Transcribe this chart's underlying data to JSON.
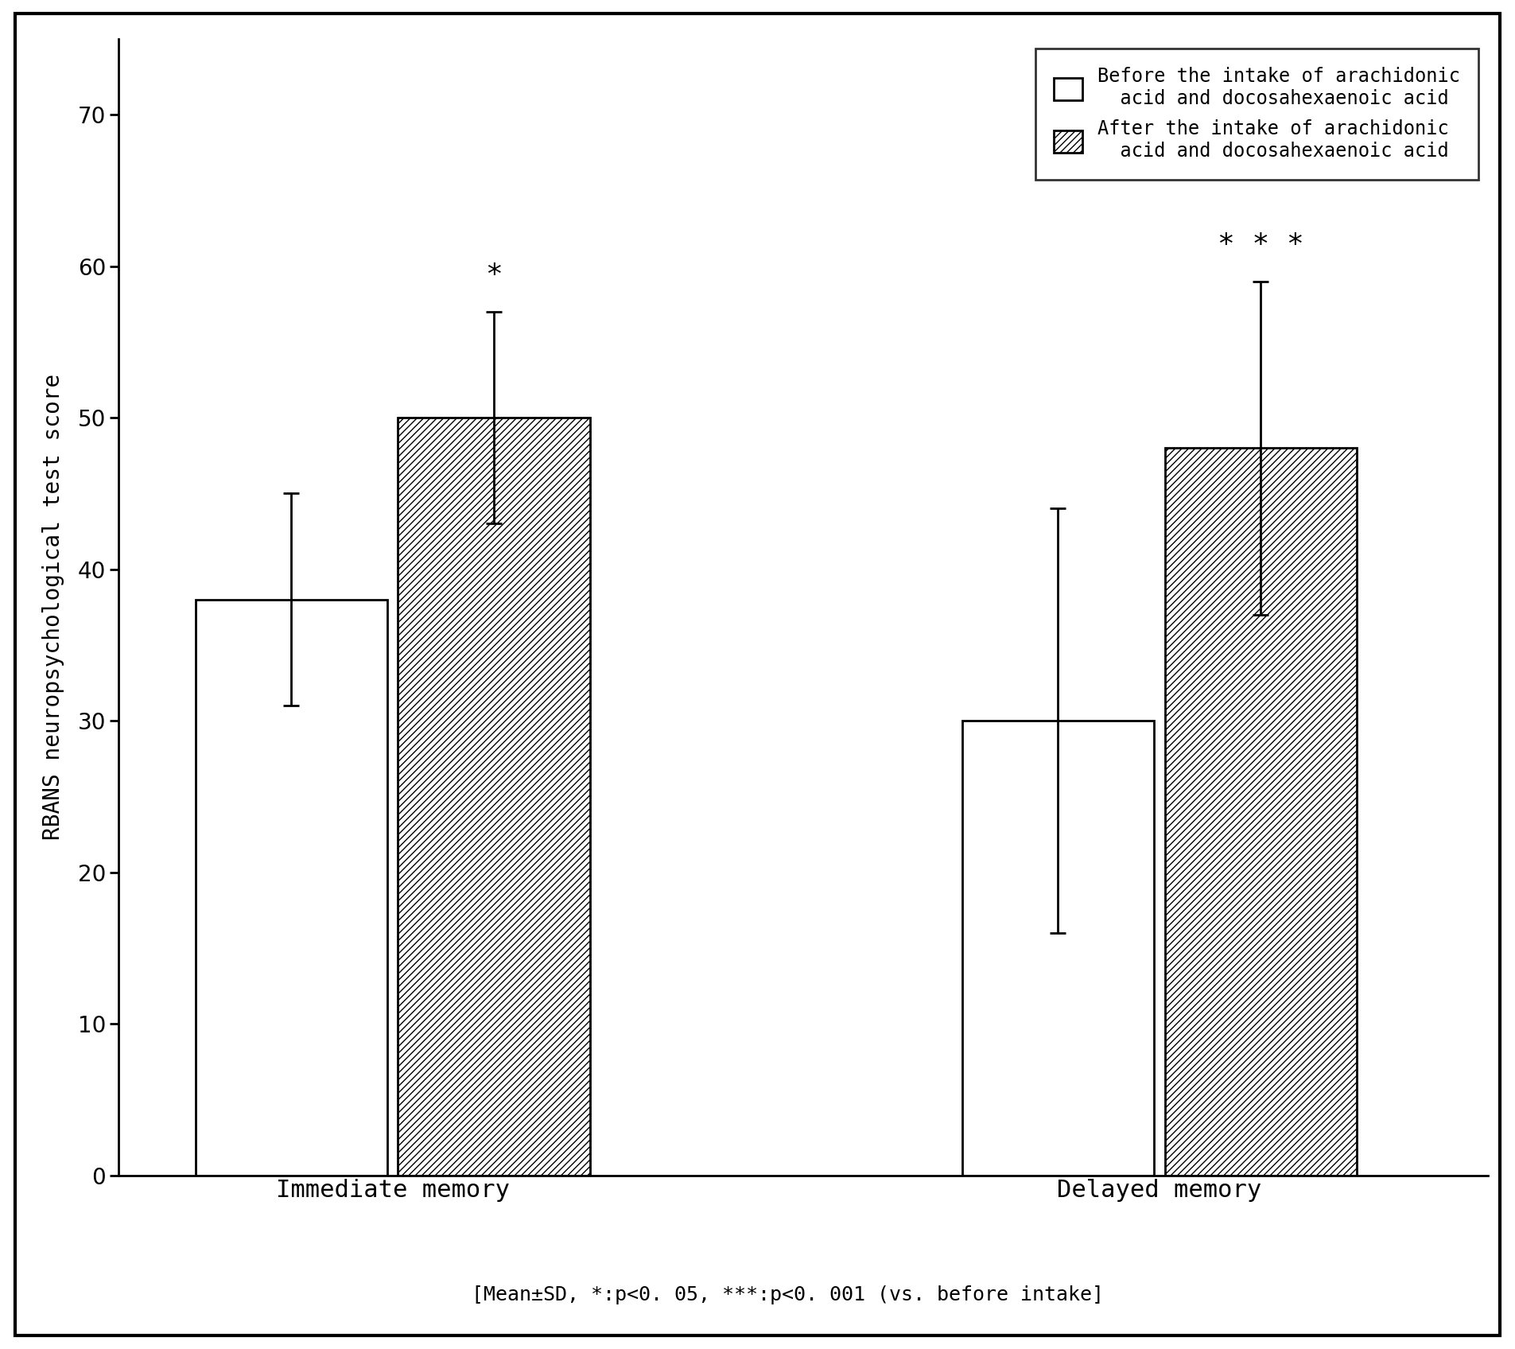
{
  "groups": [
    "Immediate memory",
    "Delayed memory"
  ],
  "before_values": [
    38,
    30
  ],
  "after_values": [
    50,
    48
  ],
  "before_errors": [
    7,
    14
  ],
  "after_errors": [
    7,
    11
  ],
  "ylim": [
    0,
    75
  ],
  "yticks": [
    0,
    10,
    20,
    30,
    40,
    50,
    60,
    70
  ],
  "ylabel": "RBANS neuropsychological test score",
  "bar_width": 0.35,
  "group_centers": [
    1.0,
    2.4
  ],
  "before_color": "#ffffff",
  "after_color": "#ffffff",
  "hatch_pattern": "////",
  "edge_color": "#000000",
  "significance_immediate": "*",
  "significance_delayed": "* * *",
  "legend_before_line1": "Before the intake of arachidonic",
  "legend_before_line2": "  acid and docosahexaenoic acid",
  "legend_after_line1": "After the intake of arachidonic",
  "legend_after_line2": "  acid and docosahexaenoic acid",
  "footnote": "[Mean±SD, *:p<0. 05, ***:p<0. 001 (vs. before intake]",
  "tick_fontsize": 20,
  "label_fontsize": 20,
  "legend_fontsize": 17,
  "footnote_fontsize": 18,
  "sig_fontsize": 26,
  "xtick_fontsize": 22,
  "background_color": "#ffffff"
}
